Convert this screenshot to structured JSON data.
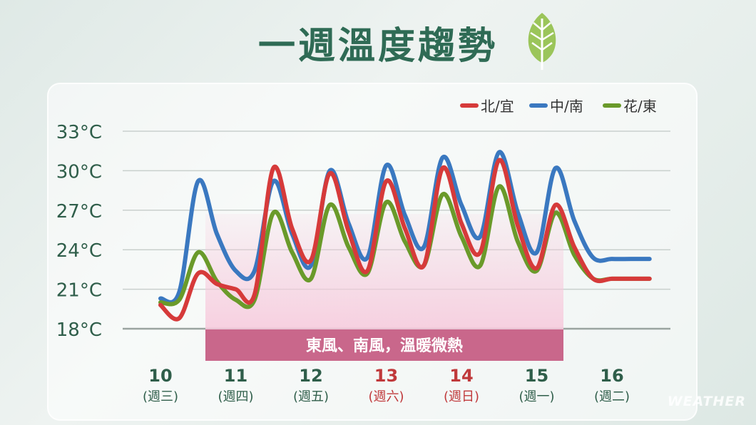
{
  "title": "一週溫度趨勢",
  "watermark": "WEATHER",
  "annotation": "東風、南風，溫暖微熱",
  "colors": {
    "title": "#2f6b55",
    "axis_text": "#2f5e4a",
    "weekday": "#2f5e4a",
    "weekend": "#c0393b",
    "band_fill": "#f7c9dc",
    "band_label_bg": "#c9678b"
  },
  "chart_data": {
    "type": "line",
    "ylim": [
      18,
      33
    ],
    "yticks": [
      "18°C",
      "21°C",
      "24°C",
      "27°C",
      "30°C",
      "33°C"
    ],
    "ytick_values": [
      18,
      21,
      24,
      27,
      30,
      33
    ],
    "grid": true,
    "legend_position": "top-right",
    "days": [
      {
        "date": "10",
        "weekday": "(週三)",
        "weekend": false
      },
      {
        "date": "11",
        "weekday": "(週四)",
        "weekend": false
      },
      {
        "date": "12",
        "weekday": "(週五)",
        "weekend": false
      },
      {
        "date": "13",
        "weekday": "(週六)",
        "weekend": true
      },
      {
        "date": "14",
        "weekday": "(週日)",
        "weekend": true
      },
      {
        "date": "15",
        "weekday": "(週一)",
        "weekend": false
      },
      {
        "date": "16",
        "weekday": "(週二)",
        "weekend": false
      }
    ],
    "x": [
      10,
      10.25,
      10.5,
      10.75,
      11,
      11.25,
      11.5,
      11.75,
      12,
      12.25,
      12.5,
      12.75,
      13,
      13.25,
      13.5,
      13.75,
      14,
      14.25,
      14.5,
      14.75,
      15,
      15.25,
      15.5,
      15.75,
      16,
      16.25,
      16.5,
      16.75
    ],
    "series": [
      {
        "name": "北/宜",
        "color": "#d63a3a",
        "values": [
          19.8,
          18.8,
          22.2,
          21.4,
          21.0,
          20.6,
          30.2,
          25.6,
          23.2,
          29.8,
          25.4,
          22.4,
          29.2,
          25.6,
          22.8,
          30.2,
          26.0,
          23.8,
          30.8,
          25.8,
          22.6,
          27.4,
          24.2,
          21.8,
          21.8,
          21.8,
          21.8,
          21.8
        ]
      },
      {
        "name": "中/南",
        "color": "#3a78c0",
        "values": [
          20.3,
          20.8,
          29.2,
          25.2,
          22.4,
          22.4,
          29.2,
          25.2,
          22.8,
          30.0,
          26.0,
          23.4,
          30.4,
          26.6,
          24.2,
          31.0,
          27.4,
          25.0,
          31.4,
          26.8,
          23.8,
          30.2,
          26.2,
          23.4,
          23.3,
          23.3,
          23.3,
          23.3
        ]
      },
      {
        "name": "花/東",
        "color": "#6a9a2a",
        "values": [
          20.0,
          20.2,
          23.8,
          21.6,
          20.2,
          20.2,
          26.8,
          23.8,
          21.8,
          27.4,
          24.2,
          22.2,
          27.6,
          24.6,
          22.8,
          28.2,
          25.0,
          22.8,
          28.8,
          24.6,
          22.4,
          26.8,
          23.6,
          21.8,
          21.8,
          21.8,
          21.8,
          21.8
        ]
      }
    ]
  }
}
